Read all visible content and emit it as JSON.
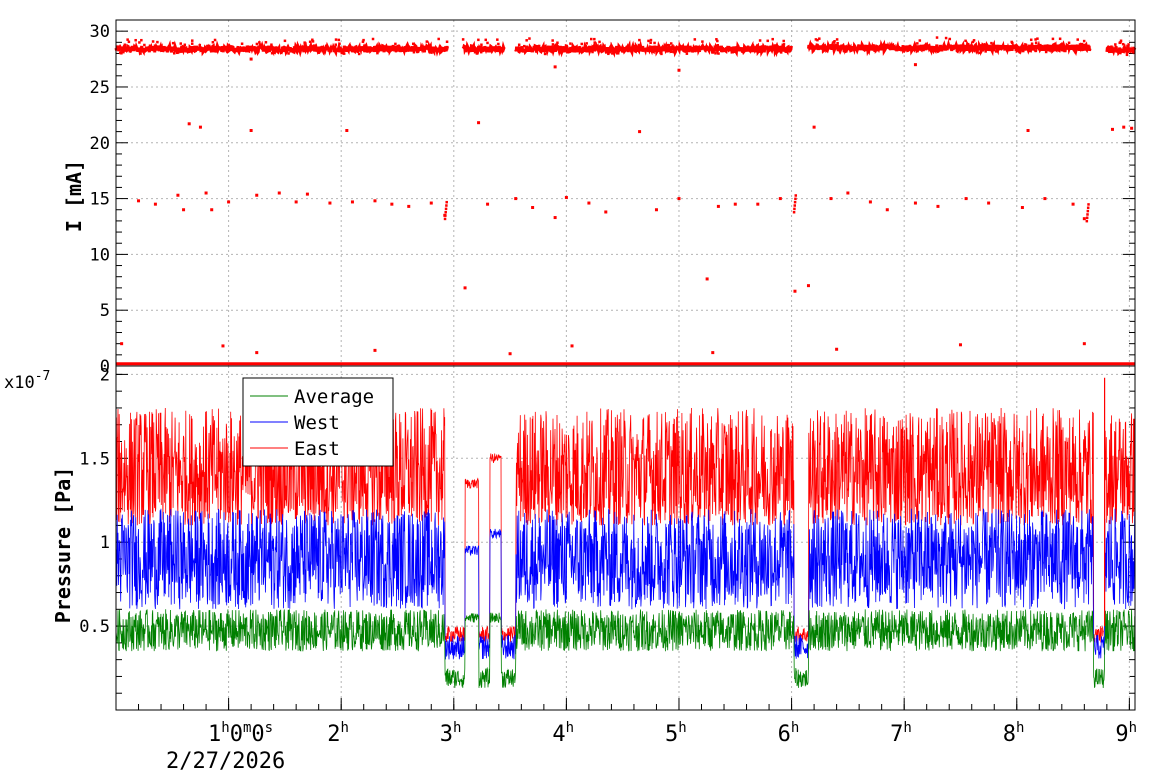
{
  "chart_data": [
    {
      "type": "scatter",
      "ylabel": "I [mA]",
      "xlim": [
        0,
        9.05
      ],
      "ylim": [
        0,
        31
      ],
      "yticks": [
        0,
        5,
        10,
        15,
        20,
        25,
        30
      ],
      "ytick_labels": [
        "0",
        "5",
        "10",
        "15",
        "20",
        "25",
        "30"
      ],
      "grid": true,
      "series": [
        {
          "color": "#ff0000",
          "segments": [
            [
              0.0,
              2.95,
              28.4
            ],
            [
              3.08,
              3.45,
              28.4
            ],
            [
              3.55,
              6.0,
              28.4
            ],
            [
              6.15,
              8.65,
              28.5
            ],
            [
              8.8,
              9.05,
              28.3
            ]
          ],
          "zero_gaps": [
            [
              2.95,
              3.08
            ],
            [
              3.45,
              3.55
            ],
            [
              6.0,
              6.15
            ],
            [
              8.65,
              8.8
            ]
          ],
          "points": [
            [
              0.05,
              2.0
            ],
            [
              0.2,
              14.8
            ],
            [
              0.35,
              14.5
            ],
            [
              0.55,
              15.3
            ],
            [
              0.6,
              14.0
            ],
            [
              0.65,
              21.7
            ],
            [
              0.75,
              21.4
            ],
            [
              0.8,
              15.5
            ],
            [
              0.85,
              14.0
            ],
            [
              1.0,
              14.7
            ],
            [
              1.2,
              21.1
            ],
            [
              1.25,
              15.3
            ],
            [
              1.45,
              15.5
            ],
            [
              1.6,
              14.7
            ],
            [
              1.7,
              15.4
            ],
            [
              1.9,
              14.6
            ],
            [
              2.05,
              21.1
            ],
            [
              2.1,
              14.7
            ],
            [
              2.3,
              14.8
            ],
            [
              2.45,
              14.5
            ],
            [
              2.6,
              14.3
            ],
            [
              2.8,
              14.6
            ],
            [
              2.92,
              13.5
            ],
            [
              3.1,
              7.0
            ],
            [
              3.22,
              21.8
            ],
            [
              3.3,
              14.5
            ],
            [
              3.55,
              15.0
            ],
            [
              3.7,
              14.2
            ],
            [
              3.9,
              13.3
            ],
            [
              4.0,
              15.1
            ],
            [
              4.2,
              14.6
            ],
            [
              4.35,
              13.8
            ],
            [
              4.65,
              21.0
            ],
            [
              4.8,
              14.0
            ],
            [
              5.0,
              15.0
            ],
            [
              5.25,
              7.8
            ],
            [
              5.35,
              14.3
            ],
            [
              5.5,
              14.5
            ],
            [
              5.7,
              14.5
            ],
            [
              5.9,
              15.0
            ],
            [
              6.03,
              6.7
            ],
            [
              6.15,
              7.2
            ],
            [
              6.2,
              21.4
            ],
            [
              6.35,
              15.0
            ],
            [
              6.5,
              15.5
            ],
            [
              6.7,
              14.7
            ],
            [
              6.85,
              14.0
            ],
            [
              7.1,
              14.6
            ],
            [
              7.3,
              14.3
            ],
            [
              7.55,
              15.0
            ],
            [
              7.75,
              14.6
            ],
            [
              8.05,
              14.2
            ],
            [
              8.1,
              21.1
            ],
            [
              8.25,
              15.0
            ],
            [
              8.5,
              14.5
            ],
            [
              8.6,
              13.2
            ],
            [
              8.85,
              21.2
            ],
            [
              8.95,
              21.4
            ],
            [
              9.02,
              21.3
            ],
            [
              1.2,
              27.5
            ],
            [
              3.9,
              26.8
            ],
            [
              5.0,
              26.5
            ],
            [
              7.1,
              27.0
            ],
            [
              0.95,
              1.8
            ],
            [
              1.25,
              1.2
            ],
            [
              2.3,
              1.4
            ],
            [
              3.5,
              1.1
            ],
            [
              4.05,
              1.8
            ],
            [
              5.3,
              1.2
            ],
            [
              6.4,
              1.5
            ],
            [
              7.5,
              1.9
            ],
            [
              8.6,
              2.0
            ]
          ]
        }
      ]
    },
    {
      "type": "line",
      "ylabel": "Pressure [Pa]",
      "y_multiplier": "x10",
      "y_exponent": "-7",
      "xlim": [
        0,
        9.05
      ],
      "ylim": [
        0.0,
        2.05
      ],
      "yticks": [
        0.5,
        1.0,
        1.5,
        2.0
      ],
      "ytick_labels": [
        "0.5",
        "1",
        "1.5",
        "2"
      ],
      "xticks": [
        1,
        2,
        3,
        4,
        5,
        6,
        7,
        8,
        9
      ],
      "first_tick_time": {
        "h": "1",
        "hs": "h",
        "m": "0",
        "ms": "m",
        "s": "0",
        "ss": "s"
      },
      "tick_hours": [
        "2",
        "3",
        "4",
        "5",
        "6",
        "7",
        "8",
        "9"
      ],
      "hour_suffix": "h",
      "date_label": "2/27/2026",
      "grid": true,
      "legend": {
        "placement": "top-left",
        "entries": [
          "Average",
          "West",
          "East"
        ]
      },
      "series": [
        {
          "name": "Average",
          "color": "#008000",
          "normal": [
            0.35,
            0.6
          ],
          "low": [
            0.13,
            0.25
          ]
        },
        {
          "name": "West",
          "color": "#0000ff",
          "normal": [
            0.6,
            1.2
          ],
          "low": [
            0.3,
            0.45
          ]
        },
        {
          "name": "East",
          "color": "#ff0000",
          "normal": [
            1.1,
            1.8
          ],
          "low": [
            0.4,
            0.5
          ]
        }
      ],
      "excursions": [
        {
          "start": 2.92,
          "end": 3.1,
          "level": "low"
        },
        {
          "start": 3.1,
          "end": 3.22,
          "plateau": [
            1.35,
            0.95,
            0.55
          ]
        },
        {
          "start": 3.22,
          "end": 3.32,
          "level": "low"
        },
        {
          "start": 3.32,
          "end": 3.42,
          "plateau": [
            1.5,
            1.05,
            0.55
          ]
        },
        {
          "start": 3.42,
          "end": 3.55,
          "level": "low"
        },
        {
          "start": 6.02,
          "end": 6.15,
          "level": "low"
        },
        {
          "start": 8.68,
          "end": 8.78,
          "level": "low"
        }
      ]
    }
  ]
}
